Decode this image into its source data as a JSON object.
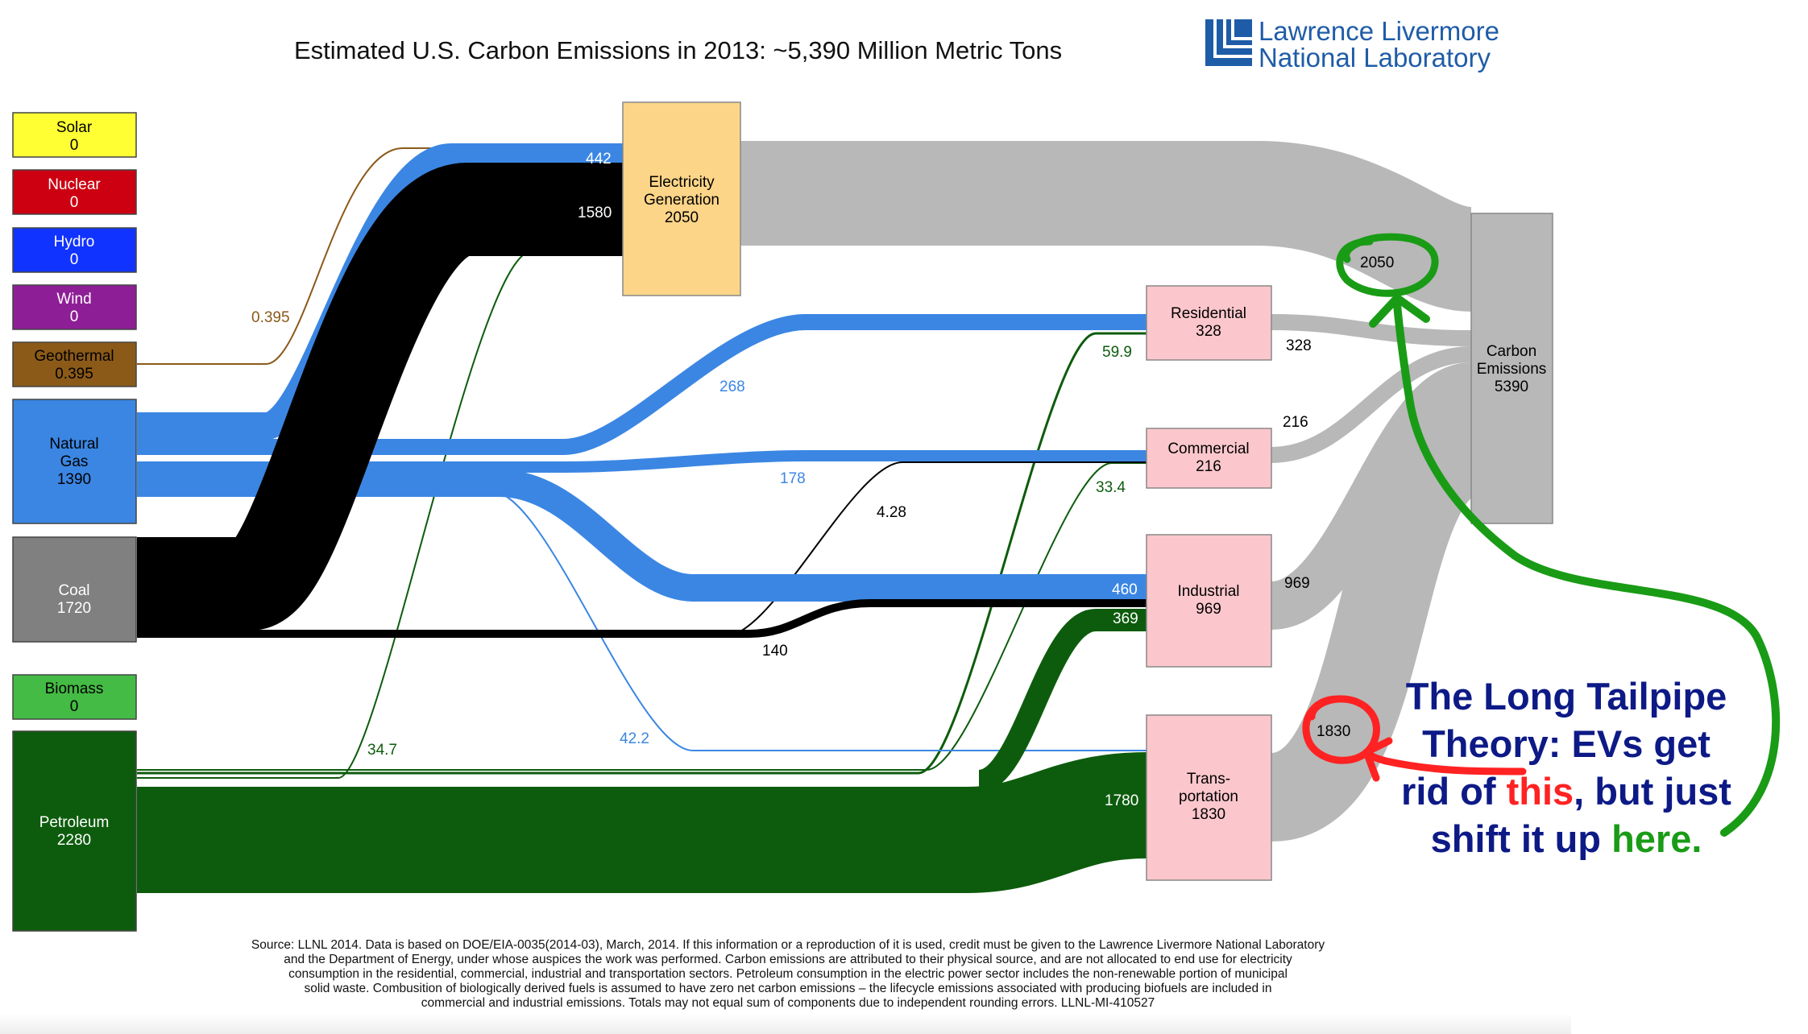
{
  "title": "Estimated U.S. Carbon Emissions in 2013: ~5,390 Million Metric Tons",
  "logo": {
    "line1": "Lawrence Livermore",
    "line2": "National Laboratory",
    "color": "#1f5ca8"
  },
  "colors": {
    "solar": "#ffff33",
    "nuclear": "#cc0011",
    "hydro": "#1133ff",
    "wind": "#8e1e96",
    "geothermal": "#8b5a19",
    "gas": "#3b86e3",
    "coal": "#808080",
    "coal_flow": "#000000",
    "biomass": "#44bb44",
    "petroleum": "#0d5c0d",
    "electricity": "#fcd588",
    "sector": "#fcc7cc",
    "emissions": "#b8b8b8",
    "annot_green": "#1a9b16",
    "annot_red": "#ff2222",
    "annot_blue": "#0d1a86"
  },
  "sources": [
    {
      "name": "Solar",
      "value": "0"
    },
    {
      "name": "Nuclear",
      "value": "0"
    },
    {
      "name": "Hydro",
      "value": "0"
    },
    {
      "name": "Wind",
      "value": "0"
    },
    {
      "name": "Geothermal",
      "value": "0.395"
    },
    {
      "name": "Natural\nGas",
      "value": "1390"
    },
    {
      "name": "Coal",
      "value": "1720"
    },
    {
      "name": "Biomass",
      "value": "0"
    },
    {
      "name": "Petroleum",
      "value": "2280"
    }
  ],
  "electricity": {
    "name": "Electricity\nGeneration",
    "value": "2050"
  },
  "sectors": [
    {
      "name": "Residential",
      "value": "328"
    },
    {
      "name": "Commercial",
      "value": "216"
    },
    {
      "name": "Industrial",
      "value": "969"
    },
    {
      "name": "Trans-\nportation",
      "value": "1830"
    }
  ],
  "emissions": {
    "name": "Carbon\nEmissions",
    "value": "5390"
  },
  "flow_labels": {
    "geo_elec": "0.395",
    "gas_elec": "442",
    "coal_elec": "1580",
    "pet_elec": "34.7",
    "gas_res": "268",
    "gas_com": "178",
    "gas_ind": "460",
    "gas_trans": "42.2",
    "coal_com": "4.28",
    "coal_ind": "140",
    "pet_res": "59.9",
    "pet_com": "33.4",
    "pet_ind": "369",
    "pet_trans": "1780",
    "elec_out": "2050",
    "res_out": "328",
    "com_out": "216",
    "ind_out": "969",
    "trans_out": "1830"
  },
  "annotation": {
    "line1": "The Long Tailpipe",
    "line2": "Theory: EVs get",
    "line3_a": "rid of ",
    "line3_b": "this",
    "line3_c": ", but just",
    "line4_a": "shift it up ",
    "line4_b": "here."
  },
  "footnote": [
    "Source: LLNL 2014. Data is based on DOE/EIA-0035(2014-03), March, 2014. If this information or a reproduction of it is used, credit must be given to the Lawrence Livermore National Laboratory",
    "and the Department of Energy, under whose auspices the work was performed. Carbon emissions are attributed to their physical source, and are not allocated to end use for electricity",
    "consumption in the residential, commercial, industrial and transportation sectors.  Petroleum consumption in the electric power sector includes the non-renewable portion of municipal",
    "solid waste.  Combusition of biologically derived fuels is assumed to have zero net carbon emissions – the lifecycle emissions associated with producing biofuels are included in",
    "commercial and industrial emissions.  Totals may not equal sum of components due to independent rounding errors.  LLNL-MI-410527"
  ]
}
